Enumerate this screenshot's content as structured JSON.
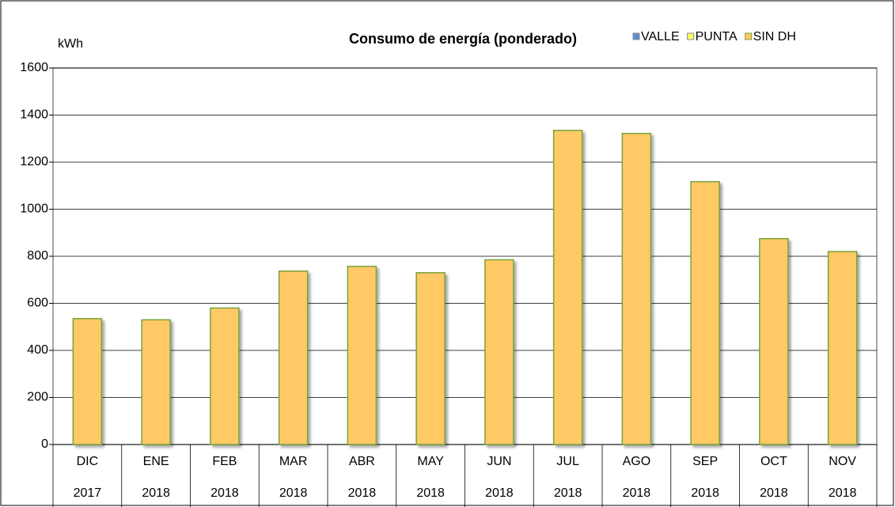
{
  "chart_data": {
    "type": "stacked_bar",
    "title": "Consumo de energía (ponderado)",
    "y_label": "kWh",
    "categories": [
      "DIC",
      "ENE",
      "FEB",
      "MAR",
      "ABR",
      "MAY",
      "JUN",
      "JUL",
      "AGO",
      "SEP",
      "OCT",
      "NOV"
    ],
    "years": [
      "2017",
      "2018",
      "2018",
      "2018",
      "2018",
      "2018",
      "2018",
      "2018",
      "2018",
      "2018",
      "2018",
      "2018"
    ],
    "series": [
      {
        "name": "VALLE",
        "color": "#5b8fd6",
        "values": [
          0,
          0,
          0,
          0,
          0,
          0,
          0,
          0,
          0,
          0,
          0,
          0
        ]
      },
      {
        "name": "PUNTA",
        "color": "#ffff66",
        "values": [
          0,
          0,
          0,
          0,
          0,
          0,
          0,
          0,
          0,
          0,
          0,
          0
        ]
      },
      {
        "name": "SIN DH",
        "color": "#ffc966",
        "values": [
          535,
          530,
          580,
          737,
          757,
          730,
          785,
          1335,
          1322,
          1117,
          875,
          820
        ]
      }
    ],
    "ylim": [
      0,
      1600
    ],
    "yticks": [
      0,
      200,
      400,
      600,
      800,
      1000,
      1200,
      1400,
      1600
    ],
    "grid": true,
    "legend": "top-right"
  }
}
